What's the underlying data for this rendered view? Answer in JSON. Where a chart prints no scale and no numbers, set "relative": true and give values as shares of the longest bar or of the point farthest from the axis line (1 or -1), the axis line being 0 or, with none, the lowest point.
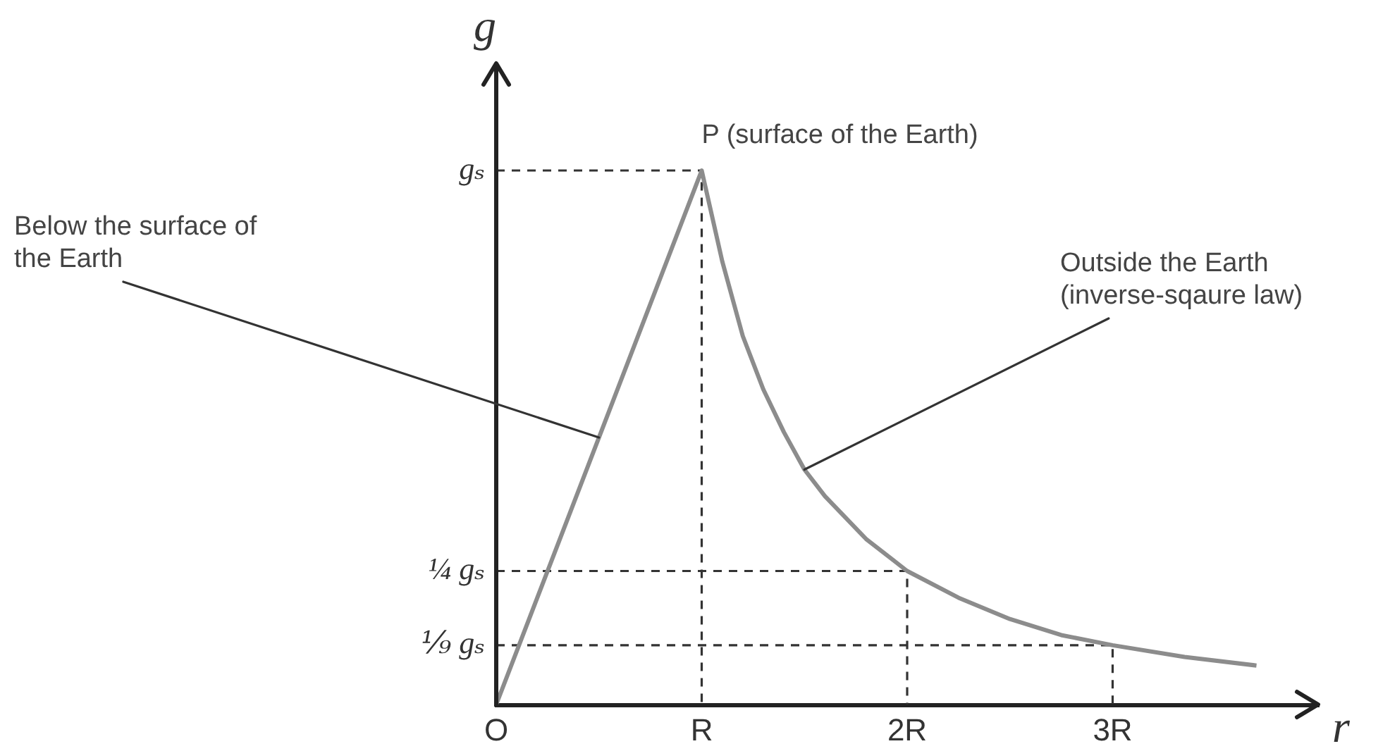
{
  "chart_data": {
    "type": "line",
    "xlabel": "r",
    "ylabel": "g",
    "relative": true,
    "annotations": [
      {
        "text": "P (surface of the Earth)",
        "x": 1,
        "y": 1
      },
      {
        "text": "gₛ",
        "x": 0,
        "y": 1
      },
      {
        "text": "Below the surface of the Earth",
        "x": 0.5,
        "y": 0.5
      },
      {
        "text": "Outside the Earth (inverse-sqaure law)",
        "x": 1.5,
        "y": 0.44
      },
      {
        "text": "¼ gₛ",
        "x": 0,
        "y": 0.25
      },
      {
        "text": "⅑ gₛ",
        "x": 0,
        "y": 0.111
      }
    ],
    "xlim": [
      0,
      4
    ],
    "xticks": [
      {
        "value": 0,
        "label": "O"
      },
      {
        "value": 1,
        "label": "R"
      },
      {
        "value": 2,
        "label": "2R"
      },
      {
        "value": 3,
        "label": "3R"
      }
    ],
    "marker": "none",
    "series": [
      {
        "color": "#8c8c8c",
        "x": [
          0,
          1,
          1.1,
          1.2,
          1.3,
          1.4,
          1.5,
          1.6,
          1.8,
          2,
          2.25,
          2.5,
          2.75,
          3,
          3.35,
          3.7
        ],
        "values": [
          0,
          1,
          0.83,
          0.69,
          0.59,
          0.51,
          0.44,
          0.39,
          0.31,
          0.25,
          0.2,
          0.16,
          0.13,
          0.111,
          0.089,
          0.073
        ]
      },
      {
        "color": "#333333",
        "line_style": "dashed",
        "x": [
          0,
          1,
          1
        ],
        "values": [
          1,
          1,
          0
        ]
      },
      {
        "color": "#333333",
        "line_style": "dashed",
        "x": [
          0,
          2,
          2
        ],
        "values": [
          0.25,
          0.25,
          0
        ]
      },
      {
        "color": "#333333",
        "line_style": "dashed",
        "x": [
          0,
          3,
          3
        ],
        "values": [
          0.111,
          0.111,
          0
        ]
      }
    ]
  }
}
